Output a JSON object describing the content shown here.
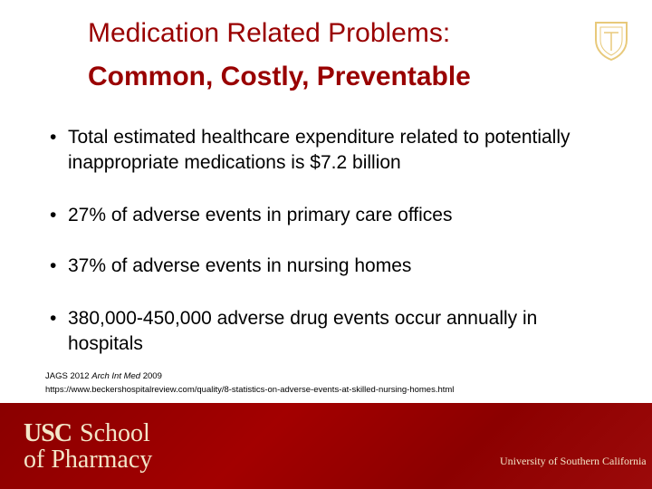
{
  "header": {
    "title": "Medication Related Problems:",
    "subtitle": "Common, Costly, Preventable"
  },
  "bullets": [
    "Total estimated healthcare expenditure related to potentially inappropriate medications is $7.2 billion",
    "27% of adverse events in primary care offices",
    "37% of adverse events in nursing homes",
    "380,000-450,000 adverse drug events occur annually in hospitals"
  ],
  "references": {
    "line1": [
      "JAGS 2012",
      "Arch Int Med",
      "2009"
    ],
    "url": "https://www.beckershospitalreview.com/quality/8-statistics-on-adverse-events-at-skilled-nursing-homes.html"
  },
  "footer": {
    "usc": "USC",
    "school": "School",
    "of_pharmacy": "of Pharmacy",
    "university": "University of Southern California"
  }
}
